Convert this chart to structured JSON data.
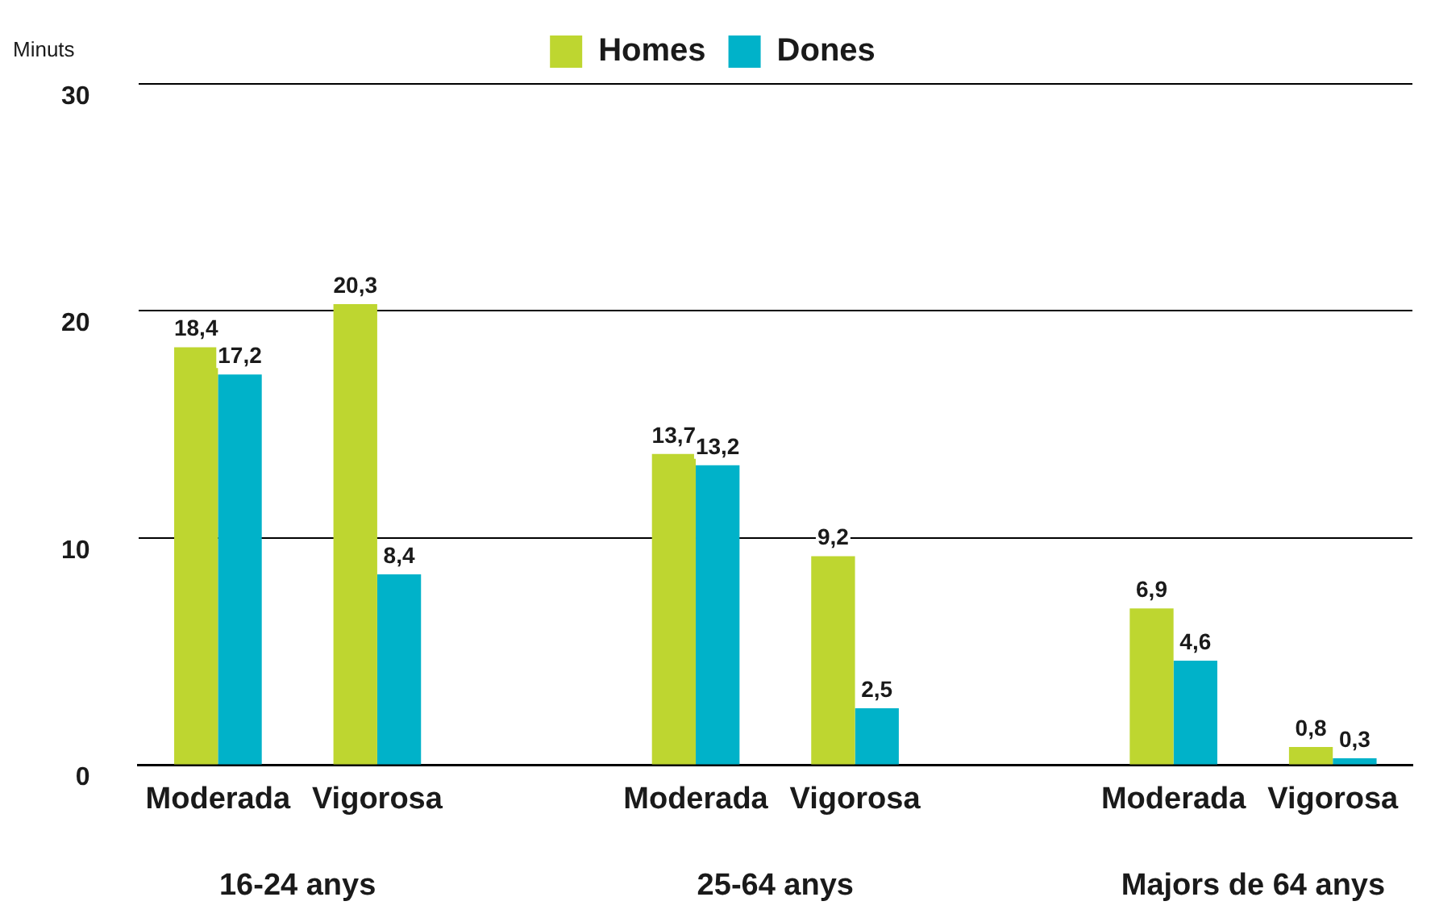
{
  "chart_data": {
    "type": "bar",
    "ylabel": "Minuts",
    "categories": [
      "Moderada",
      "Vigorosa",
      null,
      "Moderada",
      "Vigorosa",
      null,
      "Moderada",
      "Vigorosa"
    ],
    "series": [
      {
        "name": "Homes",
        "color": "#bed630",
        "values": [
          18.4,
          20.3,
          null,
          13.7,
          9.2,
          null,
          6.9,
          0.8
        ],
        "value_labels": [
          "18,4",
          "20,3",
          null,
          "13,7",
          "9,2",
          null,
          "6,9",
          "0,8"
        ]
      },
      {
        "name": "Dones",
        "color": "#00b2c9",
        "values": [
          17.2,
          8.4,
          null,
          13.2,
          2.5,
          null,
          4.6,
          0.3
        ],
        "value_labels": [
          "17,2",
          "8,4",
          null,
          "13,2",
          "2,5",
          null,
          "4,6",
          "0,3"
        ]
      }
    ],
    "ylim": [
      0,
      30
    ],
    "yticks": [
      0,
      10,
      20,
      30
    ],
    "grid": "y",
    "legend": "top",
    "annotations": [
      "16-24 anys",
      "25-64 anys",
      "Majors de 64 anys"
    ]
  }
}
